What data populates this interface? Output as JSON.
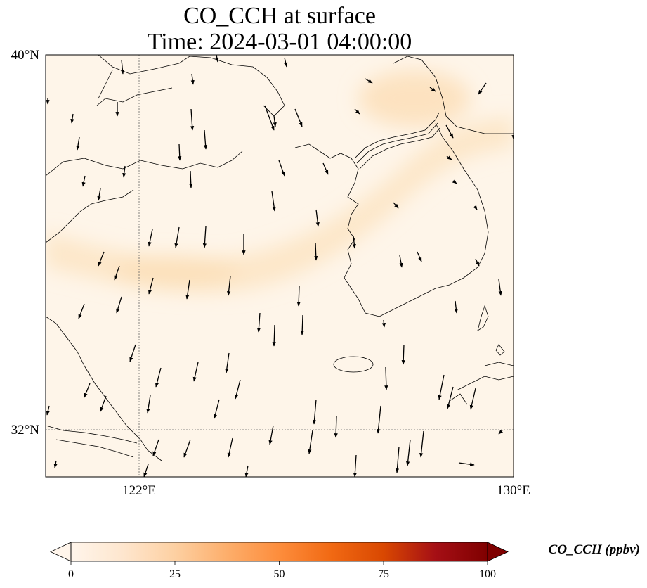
{
  "map": {
    "title_line1": "CO_CCH at surface",
    "title_line2": "Time: 2024-03-01 04:00:00",
    "lat_labels": [
      "40°N",
      "32°N"
    ],
    "lon_labels": [
      "122°E",
      "130°E"
    ]
  },
  "colorbar": {
    "label": "CO_CCH (ppbv)",
    "ticks": [
      "0",
      "25",
      "50",
      "75",
      "100"
    ],
    "colors": [
      "#fff5eb",
      "#fee6ce",
      "#fdd0a2",
      "#fdae6b",
      "#fd8d3c",
      "#f16913",
      "#d94801",
      "#a50f15",
      "#7f0000"
    ]
  },
  "field": {
    "background_color": "#fef5e9",
    "plume_color": "#fde3c0"
  }
}
